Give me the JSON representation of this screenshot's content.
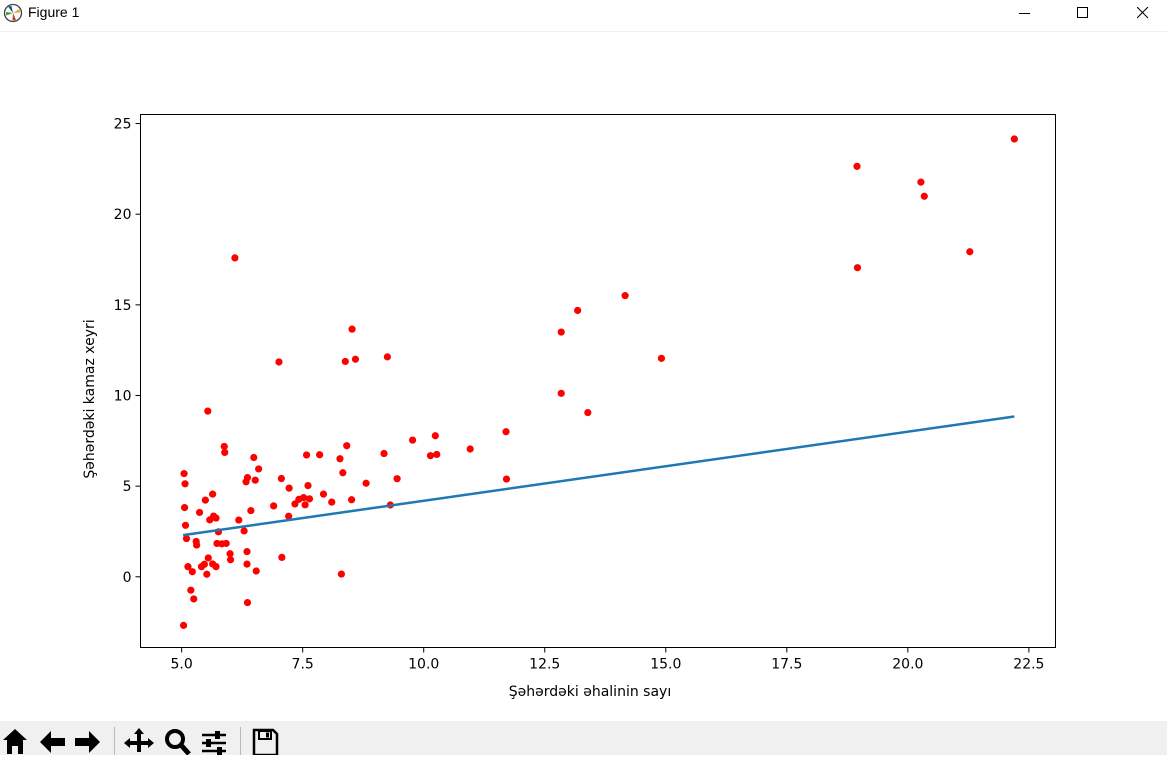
{
  "window": {
    "title": "Figure 1",
    "controls": [
      "minimize",
      "maximize",
      "close"
    ]
  },
  "toolbar": {
    "buttons": [
      "home-icon",
      "back-icon",
      "forward-icon",
      "pan-icon",
      "zoom-icon",
      "configure-subplots-icon",
      "save-icon"
    ]
  },
  "colors": {
    "points": "#ff0000",
    "fit_line": "#1f77b4",
    "toolbar_bg": "#f0f0f0"
  },
  "chart_data": {
    "type": "scatter",
    "title": "",
    "xlabel": "Şəhərdəki əhalinin sayı",
    "ylabel": "Şəhərdəki kamaz xeyri",
    "xlim": [
      4.15,
      23.05
    ],
    "ylim": [
      -3.9,
      25.5
    ],
    "xticks": [
      5.0,
      7.5,
      10.0,
      12.5,
      15.0,
      17.5,
      20.0,
      22.5
    ],
    "xtick_labels": [
      "5.0",
      "7.5",
      "10.0",
      "12.5",
      "15.0",
      "17.5",
      "20.0",
      "22.5"
    ],
    "yticks": [
      0,
      5,
      10,
      15,
      20,
      25
    ],
    "ytick_labels": [
      "0",
      "5",
      "10",
      "15",
      "20",
      "25"
    ],
    "grid": false,
    "legend": "none",
    "series": [
      {
        "kind": "scatter",
        "points": [
          [
            5.04,
            -2.68
          ],
          [
            5.05,
            5.69
          ],
          [
            5.06,
            3.82
          ],
          [
            5.07,
            5.13
          ],
          [
            5.08,
            2.84
          ],
          [
            5.1,
            2.11
          ],
          [
            5.13,
            0.56
          ],
          [
            5.19,
            -0.74
          ],
          [
            5.22,
            0.28
          ],
          [
            5.25,
            -1.22
          ],
          [
            5.3,
            1.95
          ],
          [
            5.31,
            1.75
          ],
          [
            5.37,
            3.55
          ],
          [
            5.41,
            0.56
          ],
          [
            5.47,
            0.69
          ],
          [
            5.49,
            4.23
          ],
          [
            5.52,
            0.14
          ],
          [
            5.54,
            9.14
          ],
          [
            5.55,
            1.04
          ],
          [
            5.58,
            3.14
          ],
          [
            5.64,
            0.71
          ],
          [
            5.64,
            4.56
          ],
          [
            5.66,
            3.35
          ],
          [
            5.71,
            0.56
          ],
          [
            5.71,
            3.24
          ],
          [
            5.73,
            1.84
          ],
          [
            5.76,
            2.48
          ],
          [
            5.83,
            1.82
          ],
          [
            5.88,
            7.19
          ],
          [
            5.89,
            6.86
          ],
          [
            5.92,
            1.84
          ],
          [
            6.0,
            1.27
          ],
          [
            6.01,
            0.94
          ],
          [
            6.1,
            17.59
          ],
          [
            6.18,
            3.13
          ],
          [
            6.29,
            2.53
          ],
          [
            6.33,
            5.24
          ],
          [
            6.35,
            1.39
          ],
          [
            6.35,
            0.7
          ],
          [
            6.36,
            -1.42
          ],
          [
            6.36,
            5.47
          ],
          [
            6.43,
            3.65
          ],
          [
            6.49,
            6.58
          ],
          [
            6.52,
            5.33
          ],
          [
            6.54,
            0.32
          ],
          [
            6.59,
            5.95
          ],
          [
            6.9,
            3.91
          ],
          [
            7.01,
            11.85
          ],
          [
            7.06,
            5.42
          ],
          [
            7.07,
            1.07
          ],
          [
            7.21,
            3.34
          ],
          [
            7.22,
            4.89
          ],
          [
            7.34,
            4.02
          ],
          [
            7.42,
            4.27
          ],
          [
            7.52,
            4.37
          ],
          [
            7.55,
            3.97
          ],
          [
            7.58,
            6.72
          ],
          [
            7.61,
            5.03
          ],
          [
            7.64,
            4.3
          ],
          [
            7.85,
            6.73
          ],
          [
            7.93,
            4.56
          ],
          [
            8.1,
            4.12
          ],
          [
            8.27,
            6.51
          ],
          [
            8.3,
            0.15
          ],
          [
            8.33,
            5.74
          ],
          [
            8.38,
            11.88
          ],
          [
            8.41,
            7.23
          ],
          [
            8.51,
            4.25
          ],
          [
            8.52,
            13.66
          ],
          [
            8.59,
            12.0
          ],
          [
            8.81,
            5.16
          ],
          [
            9.18,
            6.8
          ],
          [
            9.25,
            12.13
          ],
          [
            9.31,
            3.96
          ],
          [
            9.45,
            5.41
          ],
          [
            9.77,
            7.54
          ],
          [
            10.14,
            6.68
          ],
          [
            10.24,
            7.78
          ],
          [
            10.27,
            6.75
          ],
          [
            10.96,
            7.05
          ],
          [
            11.7,
            8.0
          ],
          [
            11.71,
            5.39
          ],
          [
            12.84,
            13.5
          ],
          [
            12.84,
            10.12
          ],
          [
            13.18,
            14.69
          ],
          [
            13.39,
            9.06
          ],
          [
            14.16,
            15.51
          ],
          [
            14.91,
            12.05
          ],
          [
            18.95,
            22.64
          ],
          [
            18.96,
            17.05
          ],
          [
            20.27,
            21.77
          ],
          [
            20.34,
            20.99
          ],
          [
            21.28,
            17.93
          ],
          [
            22.2,
            24.15
          ]
        ]
      },
      {
        "kind": "line",
        "x": [
          5.03,
          22.2
        ],
        "y": [
          2.3,
          8.84
        ]
      }
    ]
  }
}
